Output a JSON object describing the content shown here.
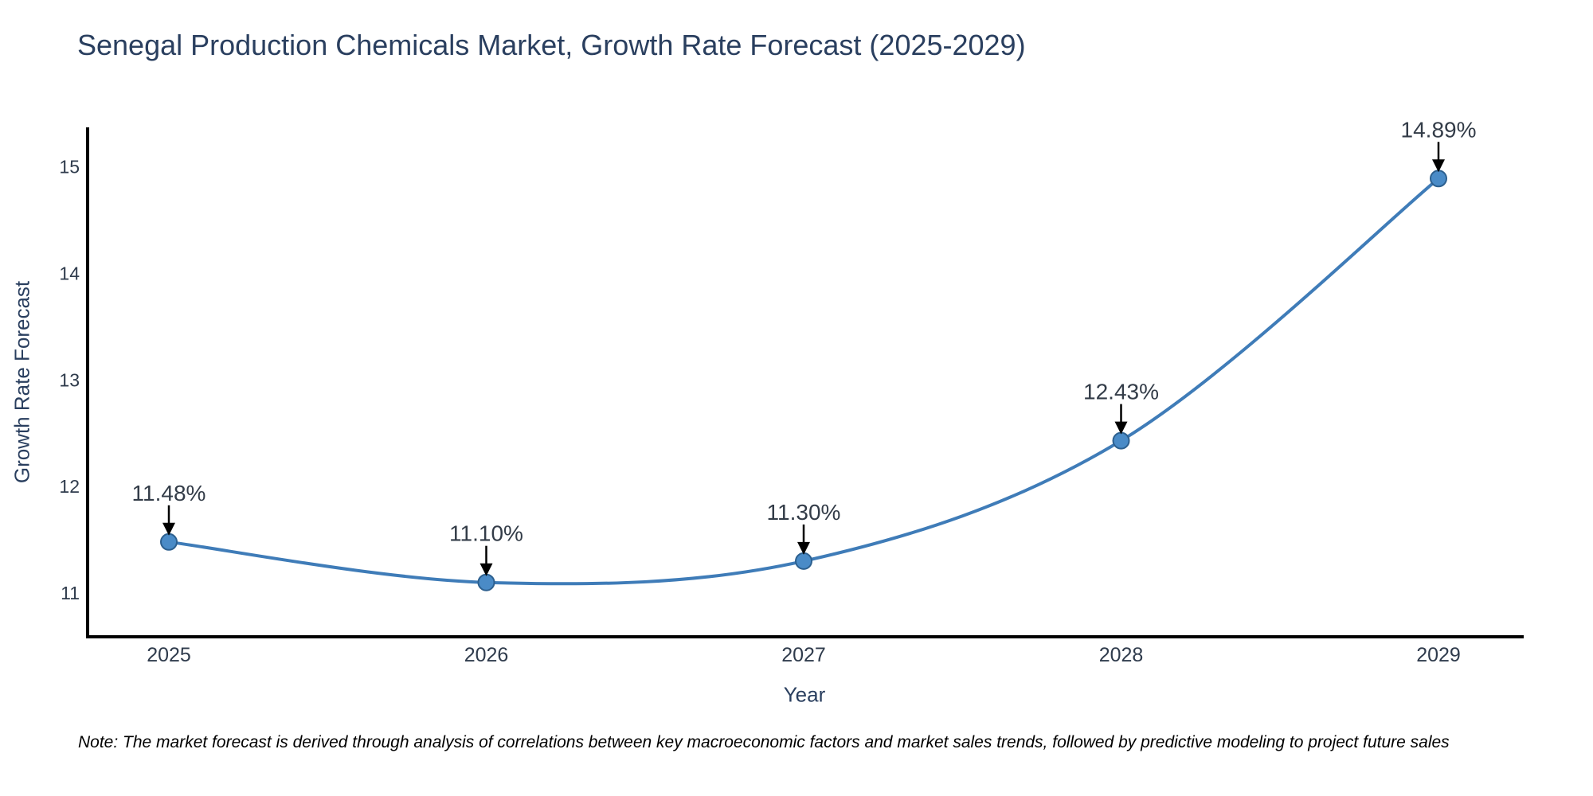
{
  "note": "Note: The market forecast is derived through analysis of correlations between key macroeconomic factors and market sales trends, followed by predictive modeling to project future sales",
  "chart_data": {
    "type": "line",
    "title": "Senegal Production Chemicals Market, Growth Rate Forecast (2025-2029)",
    "xlabel": "Year",
    "ylabel": "Growth Rate Forecast",
    "categories": [
      "2025",
      "2026",
      "2027",
      "2028",
      "2029"
    ],
    "values": [
      11.48,
      11.1,
      11.3,
      12.43,
      14.89
    ],
    "point_labels": [
      "11.48%",
      "11.10%",
      "11.30%",
      "12.43%",
      "14.89%"
    ],
    "yticks": [
      11,
      12,
      13,
      14,
      15
    ],
    "ylim": [
      10.59,
      15.37
    ],
    "line_shape": "spline",
    "grid": false,
    "legend": "none",
    "colors": {
      "line": "#3f7cb8",
      "marker_fill": "#4a8bc7",
      "marker_edge": "#2d608f",
      "axis_line": "#000000",
      "tick_label": "#2f3b4c",
      "annotation_text": "#333c48",
      "annotation_arrow": "#000000",
      "title": "#2a3f5f",
      "background": "#ffffff"
    }
  }
}
